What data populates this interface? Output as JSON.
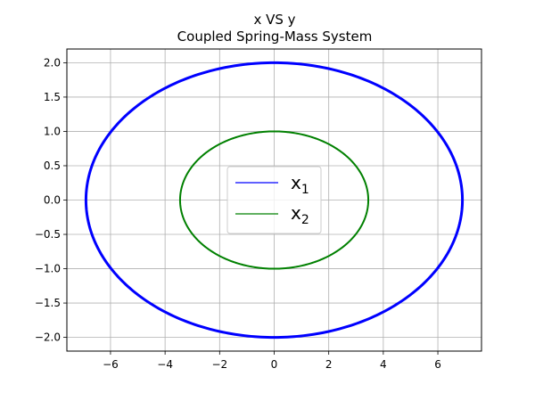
{
  "chart_data": {
    "type": "line",
    "title": "x VS y",
    "subtitle": "Coupled Spring-Mass System",
    "xlabel": "",
    "ylabel": "",
    "xlim": [
      -7.6,
      7.6
    ],
    "ylim": [
      -2.2,
      2.2
    ],
    "xticks": [
      -6,
      -4,
      -2,
      0,
      2,
      4,
      6
    ],
    "yticks": [
      -2.0,
      -1.5,
      -1.0,
      -0.5,
      0.0,
      0.5,
      1.0,
      1.5,
      2.0
    ],
    "xtick_labels": [
      "−6",
      "−4",
      "−2",
      "0",
      "2",
      "4",
      "6"
    ],
    "ytick_labels": [
      "−2.0",
      "−1.5",
      "−1.0",
      "−0.5",
      "0.0",
      "0.5",
      "1.0",
      "1.5",
      "2.0"
    ],
    "grid": true,
    "legend_position": "center",
    "series": [
      {
        "name": "x",
        "name_sub": "1",
        "color": "#0000ff",
        "shape": "ellipse",
        "x_amplitude": 6.9,
        "y_amplitude": 2.0
      },
      {
        "name": "x",
        "name_sub": "2",
        "color": "#008000",
        "shape": "ellipse",
        "x_amplitude": 3.45,
        "y_amplitude": 1.0
      }
    ]
  }
}
